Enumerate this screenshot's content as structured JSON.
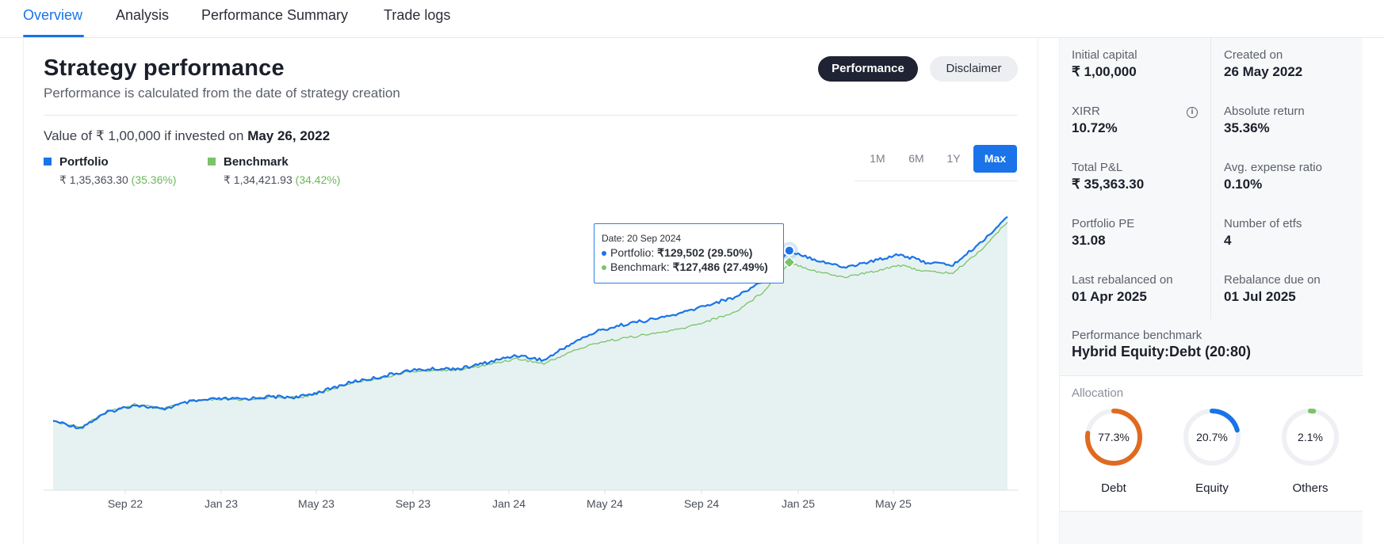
{
  "tabs": [
    "Overview",
    "Analysis",
    "Performance Summary",
    "Trade logs"
  ],
  "header": {
    "title": "Strategy performance",
    "subtitle": "Performance is calculated from the date of strategy creation",
    "performance_button": "Performance",
    "disclaimer_button": "Disclaimer"
  },
  "value_line": {
    "prefix": "Value of ",
    "amount": "₹ 1,00,000",
    "middle": " if invested on ",
    "date": "May 26, 2022"
  },
  "legend": {
    "portfolio": {
      "name": "Portfolio",
      "value": "₹ 1,35,363.30",
      "pct": "(35.36%)",
      "color": "#1a73e8"
    },
    "benchmark": {
      "name": "Benchmark",
      "value": "₹ 1,34,421.93",
      "pct": "(34.42%)",
      "color": "#7cc26a"
    }
  },
  "ranges": [
    "1M",
    "6M",
    "1Y",
    "Max"
  ],
  "active_range": "Max",
  "tooltip": {
    "date": "Date: 20 Sep 2024",
    "portfolio_label": "Portfolio: ",
    "portfolio_value": "₹129,502 (29.50%)",
    "benchmark_label": "Benchmark: ",
    "benchmark_value": "₹127,486 (27.49%)"
  },
  "chart_data": {
    "type": "line",
    "x_ticks": [
      "Sep 22",
      "Jan 23",
      "May 23",
      "Sep 23",
      "Jan 24",
      "May 24",
      "Sep 24",
      "Jan 25",
      "May 25"
    ],
    "series": [
      {
        "name": "Portfolio",
        "color": "#1a73e8",
        "dates": [
          "May 26, 2022",
          "Jul 2022",
          "Aug 2022",
          "Sep 2022",
          "Oct 2022",
          "Nov 2022",
          "Dec 2022",
          "Jan 2023",
          "Feb 2023",
          "Mar 2023",
          "Apr 2023",
          "May 2023",
          "Jun 2023",
          "Jul 2023",
          "Aug 2023",
          "Sep 2023",
          "Oct 2023",
          "Nov 2023",
          "Dec 2023",
          "Jan 2024",
          "Feb 2024",
          "Mar 2024",
          "Apr 2024",
          "May 2024",
          "Jun 2024",
          "Jul 2024",
          "Aug 2024",
          "Sep 20, 2024",
          "Oct 2024",
          "Nov 2024",
          "Dec 2024",
          "Jan 2025",
          "Feb 2025",
          "Mar 2025",
          "Apr 2025",
          "May 2025"
        ],
        "values": [
          100000,
          98800,
          101500,
          102800,
          102000,
          103300,
          103800,
          103800,
          104200,
          104100,
          105300,
          106800,
          107600,
          108700,
          109000,
          109100,
          110200,
          111400,
          110500,
          113400,
          115600,
          116800,
          117600,
          118600,
          120100,
          121400,
          124200,
          129502,
          127900,
          126600,
          127600,
          128900,
          127500,
          127000,
          130800,
          135363
        ]
      },
      {
        "name": "Benchmark",
        "color": "#7cc26a",
        "dates": [
          "May 26, 2022",
          "Jul 2022",
          "Aug 2022",
          "Sep 2022",
          "Oct 2022",
          "Nov 2022",
          "Dec 2022",
          "Jan 2023",
          "Feb 2023",
          "Mar 2023",
          "Apr 2023",
          "May 2023",
          "Jun 2023",
          "Jul 2023",
          "Aug 2023",
          "Sep 2023",
          "Oct 2023",
          "Nov 2023",
          "Dec 2023",
          "Jan 2024",
          "Feb 2024",
          "Mar 2024",
          "Apr 2024",
          "May 2024",
          "Jun 2024",
          "Jul 2024",
          "Aug 2024",
          "Sep 20, 2024",
          "Oct 2024",
          "Nov 2024",
          "Dec 2024",
          "Jan 2025",
          "Feb 2025",
          "Mar 2025",
          "Apr 2025",
          "May 2025"
        ],
        "values": [
          100000,
          98900,
          101600,
          102900,
          102100,
          103300,
          103700,
          103700,
          104100,
          104000,
          105200,
          106700,
          107400,
          108500,
          108800,
          108900,
          109800,
          110800,
          109900,
          112000,
          113600,
          114400,
          115100,
          115900,
          117300,
          118800,
          122200,
          127486,
          125900,
          124900,
          125800,
          127000,
          125900,
          125600,
          129500,
          134422
        ]
      }
    ],
    "y_unit": "₹"
  },
  "side_cells": [
    {
      "label": "Initial capital",
      "value": "₹ 1,00,000"
    },
    {
      "label": "Created on",
      "value": "26 May 2022"
    },
    {
      "label": "XIRR",
      "value": "10.72%",
      "icon": "info-icon"
    },
    {
      "label": "Absolute return",
      "value": "35.36%"
    },
    {
      "label": "Total P&L",
      "value": "₹ 35,363.30"
    },
    {
      "label": "Avg. expense ratio",
      "value": "0.10%"
    },
    {
      "label": "Portfolio PE",
      "value": "31.08"
    },
    {
      "label": "Number of etfs",
      "value": "4"
    },
    {
      "label": "Last rebalanced on",
      "value": "01 Apr 2025"
    },
    {
      "label": "Rebalance due on",
      "value": "01 Jul 2025"
    }
  ],
  "benchmark_info": {
    "label": "Performance benchmark",
    "value": "Hybrid Equity:Debt (20:80)"
  },
  "allocation": {
    "label": "Allocation",
    "items": [
      {
        "name": "Debt",
        "pct": "77.3%",
        "fraction": 0.773,
        "color": "#e06a1f"
      },
      {
        "name": "Equity",
        "pct": "20.7%",
        "fraction": 0.207,
        "color": "#1a73e8"
      },
      {
        "name": "Others",
        "pct": "2.1%",
        "fraction": 0.021,
        "color": "#7cc26a"
      }
    ]
  }
}
